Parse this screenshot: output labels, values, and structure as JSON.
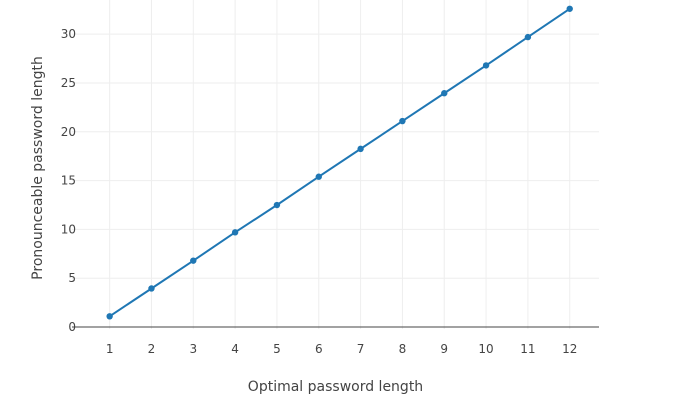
{
  "chart_data": {
    "type": "line",
    "title": "",
    "xlabel": "Optimal password length",
    "ylabel": "Pronounceable password length",
    "x": [
      1,
      2,
      3,
      4,
      5,
      6,
      7,
      8,
      9,
      10,
      11,
      12
    ],
    "xlim": [
      0.1,
      12.7
    ],
    "ylim": [
      -0.2,
      33.5
    ],
    "x_ticks": [
      1,
      2,
      3,
      4,
      5,
      6,
      7,
      8,
      9,
      10,
      11,
      12
    ],
    "y_ticks": [
      0,
      5,
      10,
      15,
      20,
      25,
      30
    ],
    "grid": true,
    "series": [
      {
        "name": "",
        "color": "#1f77b4",
        "values": [
          1.1,
          3.95,
          6.8,
          9.7,
          12.5,
          15.4,
          18.25,
          21.1,
          23.95,
          26.8,
          29.7,
          32.6
        ]
      }
    ]
  }
}
